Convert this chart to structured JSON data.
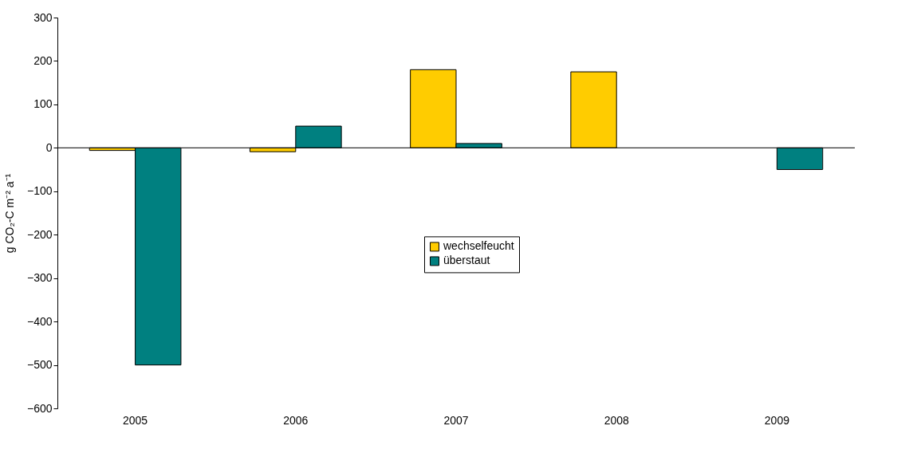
{
  "chart_data": {
    "type": "bar",
    "ylabel": "g CO₂-C m⁻² a⁻¹",
    "categories": [
      "2005",
      "2006",
      "2007",
      "2008",
      "2009"
    ],
    "series": [
      {
        "name": "wechselfeucht",
        "color": "#ffcc00",
        "values": [
          -6,
          -9,
          180,
          175,
          null
        ]
      },
      {
        "name": "überstaut",
        "color": "#008080",
        "values": [
          -500,
          50,
          10,
          null,
          -50
        ]
      }
    ],
    "ylim": [
      -600,
      300
    ],
    "yticks": [
      -600,
      -500,
      -400,
      -300,
      -200,
      -100,
      0,
      100,
      200,
      300
    ],
    "legend": "center"
  }
}
